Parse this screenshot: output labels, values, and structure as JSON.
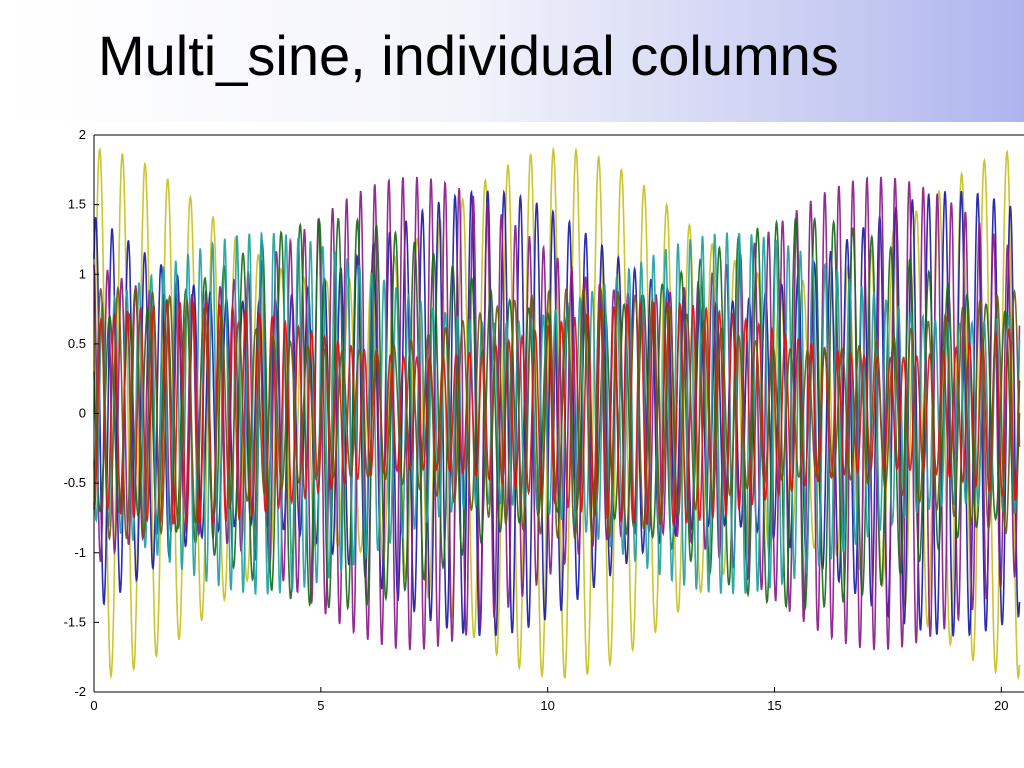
{
  "slide": {
    "title": "Multi_sine, individual columns"
  },
  "chart_data": {
    "type": "line",
    "title": "",
    "xlabel": "",
    "ylabel": "",
    "xlim": [
      0,
      20.5
    ],
    "ylim": [
      -2,
      2
    ],
    "x_ticks": [
      0,
      5,
      10,
      15,
      20
    ],
    "y_ticks": [
      -2,
      -1.5,
      -1,
      -0.5,
      0,
      0.5,
      1,
      1.5,
      2
    ],
    "x_tick_labels": [
      "0",
      "5",
      "10",
      "15",
      "20"
    ],
    "y_tick_labels": [
      "-2",
      "-1.5",
      "-1",
      "-0.5",
      "0",
      "0.5",
      "1",
      "1.5",
      "2"
    ],
    "grid": false,
    "legend": "none",
    "x_range_of_data": [
      0,
      20.4
    ],
    "series": [
      {
        "color": "#c8c020",
        "amplitude": 1.9,
        "period": 0.5
      },
      {
        "color": "#1a1aa8",
        "amplitude": 1.6,
        "period": 0.36
      },
      {
        "color": "#8a1a8a",
        "amplitude": 1.7,
        "period": 0.31
      },
      {
        "color": "#1a6a1a",
        "amplitude": 1.4,
        "period": 0.42
      },
      {
        "color": "#20a0a0",
        "amplitude": 1.3,
        "period": 0.27
      },
      {
        "color": "#e01010",
        "amplitude": 0.8,
        "period": 0.29
      },
      {
        "color": "#6a5a10",
        "amplitude": 0.9,
        "period": 0.38
      }
    ]
  }
}
